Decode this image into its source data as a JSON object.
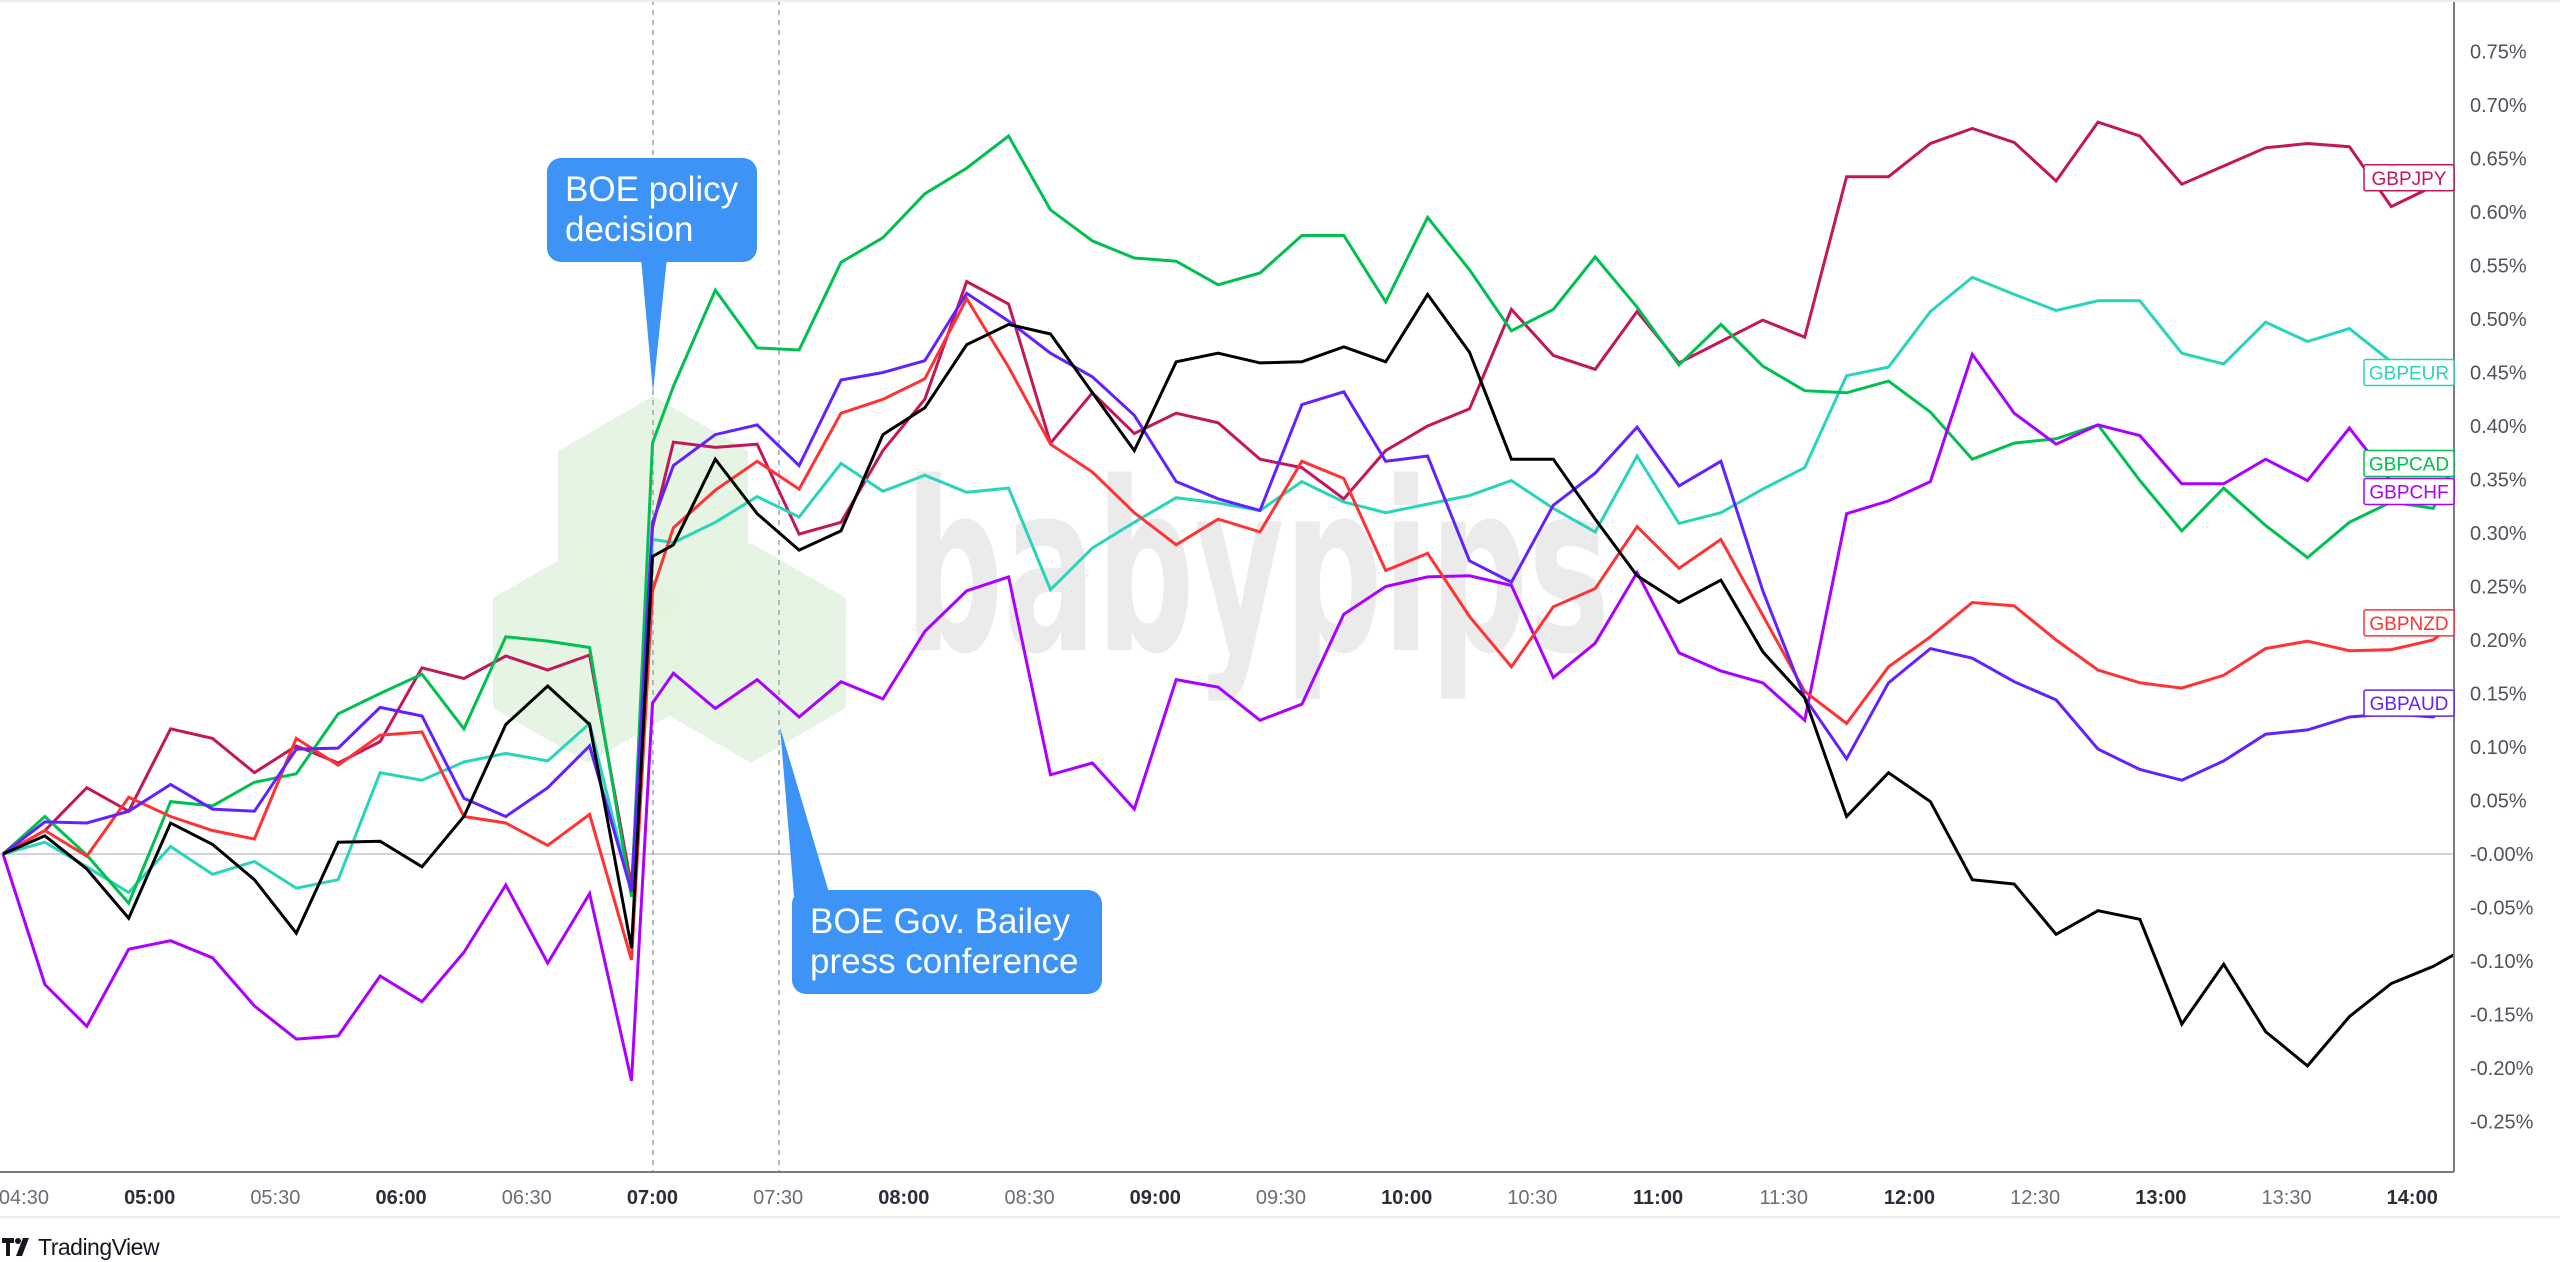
{
  "footer": {
    "brand": "TradingView"
  },
  "watermark": "babypips",
  "annotations": [
    {
      "lines": [
        "BOE policy",
        "decision"
      ],
      "time": "07:00",
      "color": "#3d94f6"
    },
    {
      "lines": [
        "BOE Gov. Bailey",
        "press conference"
      ],
      "time": "07:30",
      "color": "#3d94f6"
    }
  ],
  "chart_data": {
    "type": "line",
    "title": "",
    "xlabel": "",
    "ylabel": "",
    "ylim": [
      -0.297,
      0.798
    ],
    "xlim": [
      "04:25",
      "14:10"
    ],
    "grid": false,
    "legend": "right-edge tags",
    "x_ticks": [
      "04:30",
      "05:00",
      "05:30",
      "06:00",
      "06:30",
      "07:00",
      "07:30",
      "08:00",
      "08:30",
      "09:00",
      "09:30",
      "10:00",
      "10:30",
      "11:00",
      "11:30",
      "12:00",
      "12:30",
      "13:00",
      "13:30",
      "14:00"
    ],
    "y_ticks": [
      {
        "value": 0.75,
        "label": "0.75%"
      },
      {
        "value": 0.7,
        "label": "0.70%"
      },
      {
        "value": 0.65,
        "label": "0.65%"
      },
      {
        "value": 0.6,
        "label": "0.60%"
      },
      {
        "value": 0.55,
        "label": "0.55%"
      },
      {
        "value": 0.5,
        "label": "0.50%"
      },
      {
        "value": 0.45,
        "label": "0.45%"
      },
      {
        "value": 0.4,
        "label": "0.40%"
      },
      {
        "value": 0.35,
        "label": "0.35%"
      },
      {
        "value": 0.3,
        "label": "0.30%"
      },
      {
        "value": 0.25,
        "label": "0.25%"
      },
      {
        "value": 0.2,
        "label": "0.20%"
      },
      {
        "value": 0.15,
        "label": "0.15%"
      },
      {
        "value": 0.1,
        "label": "0.10%"
      },
      {
        "value": 0.05,
        "label": "0.05%"
      },
      {
        "value": 0.0,
        "label": "-0.00%"
      },
      {
        "value": -0.05,
        "label": "-0.05%"
      },
      {
        "value": -0.1,
        "label": "-0.10%"
      },
      {
        "value": -0.15,
        "label": "-0.15%"
      },
      {
        "value": -0.2,
        "label": "-0.20%"
      },
      {
        "value": -0.25,
        "label": "-0.25%"
      }
    ],
    "x": [
      "04:25",
      "04:35",
      "04:45",
      "04:55",
      "05:05",
      "05:15",
      "05:25",
      "05:35",
      "05:45",
      "05:55",
      "06:05",
      "06:15",
      "06:25",
      "06:35",
      "06:45",
      "06:55",
      "07:00",
      "07:05",
      "07:15",
      "07:25",
      "07:35",
      "07:45",
      "07:55",
      "08:05",
      "08:15",
      "08:25",
      "08:35",
      "08:45",
      "08:55",
      "09:05",
      "09:15",
      "09:25",
      "09:35",
      "09:45",
      "09:55",
      "10:05",
      "10:15",
      "10:25",
      "10:35",
      "10:45",
      "10:55",
      "11:05",
      "11:15",
      "11:25",
      "11:35",
      "11:45",
      "11:55",
      "12:05",
      "12:15",
      "12:25",
      "12:35",
      "12:45",
      "12:55",
      "13:05",
      "13:15",
      "13:25",
      "13:35",
      "13:45",
      "13:55",
      "14:05",
      "14:10"
    ],
    "series": [
      {
        "name": "GBPJPY",
        "color": "#c2185b",
        "values": [
          0,
          0.022,
          0.062,
          0.04,
          0.117,
          0.108,
          0.076,
          0.101,
          0.085,
          0.105,
          0.174,
          0.164,
          0.185,
          0.172,
          0.186,
          -0.03,
          0.305,
          0.385,
          0.38,
          0.383,
          0.299,
          0.31,
          0.377,
          0.425,
          0.535,
          0.514,
          0.384,
          0.431,
          0.393,
          0.412,
          0.403,
          0.369,
          0.361,
          0.332,
          0.377,
          0.4,
          0.416,
          0.509,
          0.466,
          0.453,
          0.507,
          0.459,
          0.479,
          0.499,
          0.483,
          0.633,
          0.633,
          0.664,
          0.678,
          0.665,
          0.629,
          0.684,
          0.671,
          0.626,
          0.643,
          0.66,
          0.664,
          0.661,
          0.605,
          0.624,
          0.632
        ]
      },
      {
        "name": "GBPEUR",
        "color": "#2ad4bb",
        "values": [
          0,
          0.011,
          -0.012,
          -0.036,
          0.007,
          -0.019,
          -0.007,
          -0.032,
          -0.024,
          0.076,
          0.069,
          0.086,
          0.094,
          0.087,
          0.122,
          -0.037,
          0.294,
          0.291,
          0.31,
          0.334,
          0.315,
          0.365,
          0.339,
          0.354,
          0.338,
          0.342,
          0.247,
          0.286,
          0.31,
          0.333,
          0.328,
          0.321,
          0.348,
          0.329,
          0.319,
          0.327,
          0.335,
          0.349,
          0.323,
          0.301,
          0.372,
          0.309,
          0.319,
          0.341,
          0.361,
          0.447,
          0.455,
          0.507,
          0.539,
          0.523,
          0.508,
          0.517,
          0.517,
          0.468,
          0.458,
          0.497,
          0.479,
          0.491,
          0.46,
          0.455,
          0.45
        ]
      },
      {
        "name": "GBPCAD",
        "color": "#00c050",
        "values": [
          0,
          0.035,
          -0.001,
          -0.046,
          0.049,
          0.045,
          0.067,
          0.075,
          0.131,
          0.15,
          0.168,
          0.117,
          0.203,
          0.199,
          0.193,
          -0.04,
          0.384,
          0.437,
          0.527,
          0.473,
          0.471,
          0.553,
          0.576,
          0.617,
          0.641,
          0.671,
          0.602,
          0.573,
          0.557,
          0.554,
          0.532,
          0.543,
          0.578,
          0.578,
          0.516,
          0.595,
          0.546,
          0.489,
          0.509,
          0.558,
          0.511,
          0.457,
          0.495,
          0.456,
          0.433,
          0.431,
          0.442,
          0.413,
          0.369,
          0.384,
          0.388,
          0.401,
          0.349,
          0.302,
          0.342,
          0.307,
          0.277,
          0.31,
          0.329,
          0.323,
          0.365
        ]
      },
      {
        "name": "GBPCHF",
        "color": "#aa00ff",
        "values": [
          0,
          -0.122,
          -0.161,
          -0.089,
          -0.081,
          -0.097,
          -0.142,
          -0.173,
          -0.17,
          -0.114,
          -0.138,
          -0.092,
          -0.029,
          -0.102,
          -0.037,
          -0.212,
          0.141,
          0.169,
          0.136,
          0.163,
          0.128,
          0.161,
          0.145,
          0.208,
          0.246,
          0.259,
          0.074,
          0.085,
          0.042,
          0.163,
          0.156,
          0.125,
          0.14,
          0.224,
          0.25,
          0.259,
          0.26,
          0.251,
          0.165,
          0.197,
          0.263,
          0.188,
          0.171,
          0.16,
          0.125,
          0.318,
          0.33,
          0.348,
          0.467,
          0.412,
          0.383,
          0.401,
          0.391,
          0.346,
          0.346,
          0.369,
          0.349,
          0.398,
          0.348,
          0.34,
          0.345
        ]
      },
      {
        "name": "GBPNZD",
        "color": "#ff3333",
        "values": [
          0,
          0.022,
          -0.002,
          0.053,
          0.035,
          0.022,
          0.014,
          0.108,
          0.083,
          0.111,
          0.114,
          0.035,
          0.029,
          0.008,
          0.037,
          -0.099,
          0.246,
          0.305,
          0.34,
          0.367,
          0.341,
          0.412,
          0.425,
          0.444,
          0.519,
          0.455,
          0.383,
          0.357,
          0.319,
          0.289,
          0.313,
          0.301,
          0.367,
          0.351,
          0.265,
          0.281,
          0.222,
          0.175,
          0.231,
          0.248,
          0.306,
          0.267,
          0.294,
          0.223,
          0.152,
          0.122,
          0.175,
          0.203,
          0.235,
          0.232,
          0.2,
          0.172,
          0.16,
          0.155,
          0.167,
          0.192,
          0.199,
          0.19,
          0.191,
          0.2,
          0.216
        ]
      },
      {
        "name": "GBPAUD",
        "color": "#6222ff",
        "values": [
          0,
          0.03,
          0.029,
          0.04,
          0.065,
          0.042,
          0.04,
          0.098,
          0.099,
          0.137,
          0.129,
          0.052,
          0.035,
          0.062,
          0.101,
          -0.035,
          0.31,
          0.363,
          0.392,
          0.401,
          0.363,
          0.443,
          0.45,
          0.461,
          0.524,
          0.498,
          0.468,
          0.446,
          0.41,
          0.348,
          0.332,
          0.321,
          0.42,
          0.432,
          0.367,
          0.372,
          0.274,
          0.254,
          0.326,
          0.356,
          0.399,
          0.344,
          0.367,
          0.246,
          0.146,
          0.089,
          0.16,
          0.192,
          0.183,
          0.161,
          0.144,
          0.098,
          0.079,
          0.069,
          0.087,
          0.112,
          0.116,
          0.128,
          0.131,
          0.128,
          0.141
        ]
      },
      {
        "name": "",
        "color": "#000000",
        "values": [
          0,
          0.017,
          -0.014,
          -0.06,
          0.029,
          0.009,
          -0.024,
          -0.074,
          0.011,
          0.012,
          -0.012,
          0.035,
          0.121,
          0.157,
          0.121,
          -0.088,
          0.278,
          0.289,
          0.369,
          0.318,
          0.284,
          0.302,
          0.392,
          0.417,
          0.476,
          0.495,
          0.486,
          0.431,
          0.377,
          0.46,
          0.468,
          0.459,
          0.46,
          0.474,
          0.46,
          0.523,
          0.469,
          0.369,
          0.369,
          0.313,
          0.26,
          0.235,
          0.256,
          0.189,
          0.146,
          0.035,
          0.076,
          0.049,
          -0.024,
          -0.028,
          -0.075,
          -0.053,
          -0.061,
          -0.159,
          -0.103,
          -0.166,
          -0.198,
          -0.152,
          -0.121,
          -0.105,
          -0.094
        ]
      }
    ]
  }
}
